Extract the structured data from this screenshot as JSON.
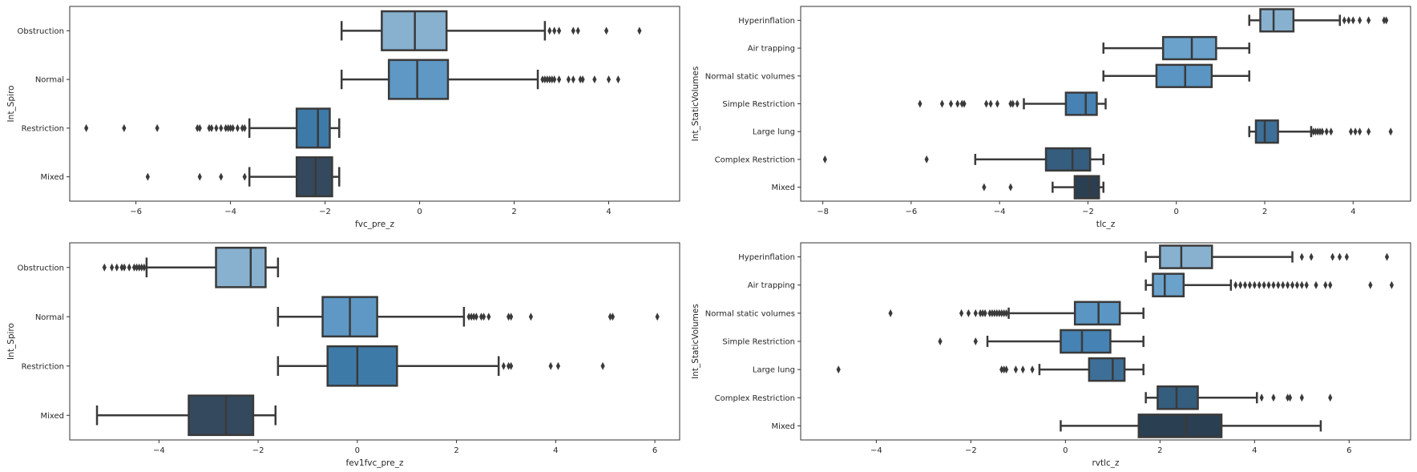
{
  "chart_data": [
    {
      "type": "boxplot",
      "orientation": "horizontal",
      "xlabel": "fvc_pre_z",
      "ylabel": "Int_Spiro",
      "xlim": [
        -7.4,
        5.5
      ],
      "xticks": [
        -6,
        -4,
        -2,
        0,
        2,
        4
      ],
      "xtick_labels": [
        "−6",
        "−4",
        "−2",
        "0",
        "2",
        "4"
      ],
      "categories": [
        "Obstruction",
        "Normal",
        "Restriction",
        "Mixed"
      ],
      "boxes": [
        {
          "color": "#88b1d0",
          "whislo": -1.65,
          "q1": -0.8,
          "med": -0.1,
          "q3": 0.57,
          "whishi": 2.65,
          "fliers": [
            2.75,
            2.85,
            2.95,
            3.25,
            3.35,
            3.95,
            4.65
          ]
        },
        {
          "color": "#5f98c5",
          "whislo": -1.65,
          "q1": -0.65,
          "med": -0.05,
          "q3": 0.6,
          "whishi": 2.5,
          "fliers": [
            2.6,
            2.65,
            2.7,
            2.75,
            2.8,
            2.85,
            2.95,
            3.15,
            3.25,
            3.4,
            3.45,
            3.7,
            4.0,
            4.2
          ]
        },
        {
          "color": "#3e7aa8",
          "whislo": -3.6,
          "q1": -2.6,
          "med": -2.15,
          "q3": -1.9,
          "whishi": -1.7,
          "fliers": [
            -7.05,
            -6.25,
            -5.55,
            -4.7,
            -4.65,
            -4.45,
            -4.4,
            -4.3,
            -4.2,
            -4.1,
            -4.05,
            -4.0,
            -3.95,
            -3.85,
            -3.75,
            -3.7
          ]
        },
        {
          "color": "#34495e",
          "whislo": -3.6,
          "q1": -2.6,
          "med": -2.2,
          "q3": -1.85,
          "whishi": -1.7,
          "fliers": [
            -5.75,
            -4.65,
            -4.2,
            -3.7
          ]
        }
      ]
    },
    {
      "type": "boxplot",
      "orientation": "horizontal",
      "xlabel": "tlc_z",
      "ylabel": "Int_StaticVolumes",
      "xlim": [
        -8.5,
        5.3
      ],
      "xticks": [
        -8,
        -6,
        -4,
        -2,
        0,
        2,
        4
      ],
      "xtick_labels": [
        "−8",
        "−6",
        "−4",
        "−2",
        "0",
        "2",
        "4"
      ],
      "categories": [
        "Hyperinflation",
        "Air trapping",
        "Normal static volumes",
        "Simple Restriction",
        "Large lung",
        "Complex Restriction",
        "Mixed"
      ],
      "boxes": [
        {
          "color": "#88b1d0",
          "whislo": 1.65,
          "q1": 1.9,
          "med": 2.2,
          "q3": 2.65,
          "whishi": 3.7,
          "fliers": [
            3.8,
            3.9,
            4.0,
            4.15,
            4.35,
            4.7,
            4.75
          ]
        },
        {
          "color": "#6aa2cc",
          "whislo": -1.65,
          "q1": -0.3,
          "med": 0.35,
          "q3": 0.9,
          "whishi": 1.65,
          "fliers": []
        },
        {
          "color": "#5a95c3",
          "whislo": -1.65,
          "q1": -0.45,
          "med": 0.2,
          "q3": 0.8,
          "whishi": 1.65,
          "fliers": []
        },
        {
          "color": "#4682b4",
          "whislo": -3.45,
          "q1": -2.5,
          "med": -2.05,
          "q3": -1.8,
          "whishi": -1.6,
          "fliers": [
            -5.8,
            -5.3,
            -5.1,
            -4.95,
            -4.85,
            -4.8,
            -4.3,
            -4.2,
            -4.05,
            -3.75,
            -3.7,
            -3.6
          ]
        },
        {
          "color": "#3d6f98",
          "whislo": 1.65,
          "q1": 1.8,
          "med": 2.0,
          "q3": 2.3,
          "whishi": 3.05,
          "fliers": [
            3.1,
            3.15,
            3.2,
            3.25,
            3.3,
            3.4,
            3.5,
            3.95,
            4.05,
            4.15,
            4.35,
            4.85
          ]
        },
        {
          "color": "#355d7e",
          "whislo": -4.55,
          "q1": -2.95,
          "med": -2.35,
          "q3": -1.95,
          "whishi": -1.65,
          "fliers": [
            -7.95,
            -5.65
          ]
        },
        {
          "color": "#2b3f52",
          "whislo": -2.8,
          "q1": -2.3,
          "med": -1.95,
          "q3": -1.75,
          "whishi": -1.65,
          "fliers": [
            -4.35,
            -3.75
          ]
        }
      ]
    },
    {
      "type": "boxplot",
      "orientation": "horizontal",
      "xlabel": "fev1fvc_pre_z",
      "ylabel": "Int_Spiro",
      "xlim": [
        -5.8,
        6.5
      ],
      "xticks": [
        -4,
        -2,
        0,
        2,
        4,
        6
      ],
      "xtick_labels": [
        "−4",
        "−2",
        "0",
        "2",
        "4",
        "6"
      ],
      "categories": [
        "Obstruction",
        "Normal",
        "Restriction",
        "Mixed"
      ],
      "boxes": [
        {
          "color": "#88b1d0",
          "whislo": -4.25,
          "q1": -2.85,
          "med": -2.15,
          "q3": -1.85,
          "whishi": -1.6,
          "fliers": [
            -5.1,
            -4.95,
            -4.85,
            -4.75,
            -4.7,
            -4.6,
            -4.5,
            -4.45,
            -4.4,
            -4.35,
            -4.3
          ]
        },
        {
          "color": "#5f98c5",
          "whislo": -1.6,
          "q1": -0.7,
          "med": -0.15,
          "q3": 0.4,
          "whishi": 2.15,
          "fliers": [
            2.25,
            2.3,
            2.35,
            2.4,
            2.5,
            2.55,
            2.65,
            3.05,
            3.1,
            3.5,
            5.1,
            5.15,
            6.05
          ]
        },
        {
          "color": "#3e7aa8",
          "whislo": -1.6,
          "q1": -0.6,
          "med": 0.0,
          "q3": 0.8,
          "whishi": 2.85,
          "fliers": [
            2.95,
            3.05,
            3.1,
            3.9,
            4.05,
            4.95
          ]
        },
        {
          "color": "#34495e",
          "whislo": -5.25,
          "q1": -3.4,
          "med": -2.65,
          "q3": -2.1,
          "whishi": -1.65,
          "fliers": []
        }
      ]
    },
    {
      "type": "boxplot",
      "orientation": "horizontal",
      "xlabel": "rvtlc_z",
      "ylabel": "Int_StaticVolumes",
      "xlim": [
        -5.6,
        7.3
      ],
      "xticks": [
        -4,
        -2,
        0,
        2,
        4,
        6
      ],
      "xtick_labels": [
        "−4",
        "−2",
        "0",
        "2",
        "4",
        "6"
      ],
      "categories": [
        "Hyperinflation",
        "Air trapping",
        "Normal static volumes",
        "Simple Restriction",
        "Large lung",
        "Complex Restriction",
        "Mixed"
      ],
      "boxes": [
        {
          "color": "#88b1d0",
          "whislo": 1.7,
          "q1": 2.0,
          "med": 2.45,
          "q3": 3.1,
          "whishi": 4.8,
          "fliers": [
            5.0,
            5.2,
            5.65,
            5.8,
            5.95,
            6.8
          ]
        },
        {
          "color": "#6aa2cc",
          "whislo": 1.7,
          "q1": 1.85,
          "med": 2.1,
          "q3": 2.5,
          "whishi": 3.5,
          "fliers": [
            3.6,
            3.7,
            3.8,
            3.9,
            4.0,
            4.1,
            4.2,
            4.3,
            4.4,
            4.5,
            4.6,
            4.7,
            4.8,
            4.9,
            5.0,
            5.1,
            5.3,
            5.5,
            5.6,
            6.45,
            6.9
          ]
        },
        {
          "color": "#5a95c3",
          "whislo": -1.2,
          "q1": 0.2,
          "med": 0.7,
          "q3": 1.15,
          "whishi": 1.65,
          "fliers": [
            -3.7,
            -2.2,
            -2.05,
            -1.9,
            -1.8,
            -1.75,
            -1.7,
            -1.6,
            -1.55,
            -1.5,
            -1.45,
            -1.4,
            -1.35,
            -1.3,
            -1.25
          ]
        },
        {
          "color": "#4682b4",
          "whislo": -1.65,
          "q1": -0.1,
          "med": 0.35,
          "q3": 0.95,
          "whishi": 1.65,
          "fliers": [
            -2.65,
            -1.9
          ]
        },
        {
          "color": "#3d6f98",
          "whislo": -0.55,
          "q1": 0.5,
          "med": 1.0,
          "q3": 1.25,
          "whishi": 1.65,
          "fliers": [
            -4.8,
            -1.35,
            -1.3,
            -1.25,
            -1.05,
            -0.9,
            -0.7
          ]
        },
        {
          "color": "#355d7e",
          "whislo": 1.7,
          "q1": 1.95,
          "med": 2.35,
          "q3": 2.8,
          "whishi": 4.05,
          "fliers": [
            4.15,
            4.4,
            4.7,
            4.75,
            5.0,
            5.6
          ]
        },
        {
          "color": "#2b3f52",
          "whislo": -0.1,
          "q1": 1.55,
          "med": 2.55,
          "q3": 3.3,
          "whishi": 5.4,
          "fliers": []
        }
      ]
    }
  ]
}
